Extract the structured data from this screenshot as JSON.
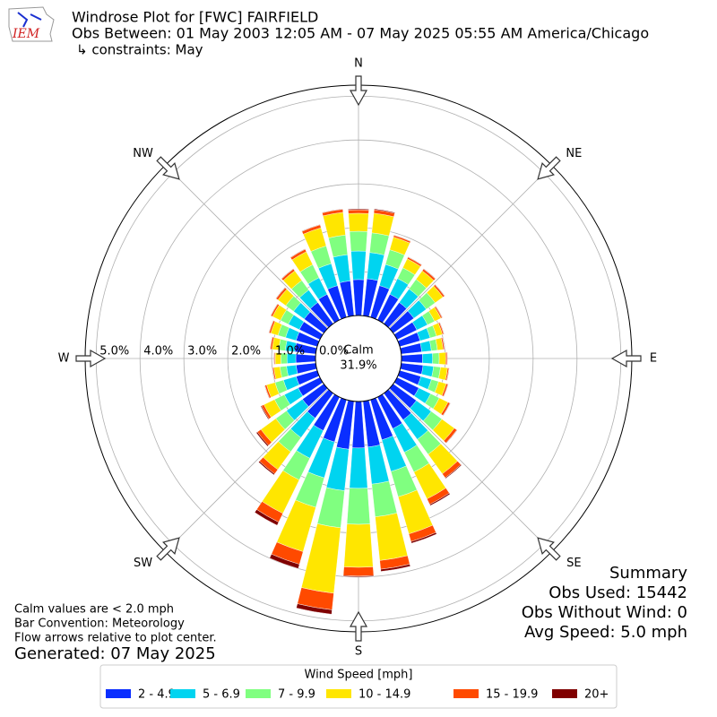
{
  "chart_data": {
    "type": "windrose",
    "title": "Windrose Plot for [FWC] FAIRFIELD",
    "subtitle": "Obs Between: 01 May 2003 12:05 AM - 07 May 2025 05:55 AM America/Chicago",
    "constraints": "↳ constraints: May",
    "logo_text": "IEM",
    "theta": [
      0,
      10,
      20,
      30,
      40,
      50,
      60,
      70,
      80,
      90,
      100,
      110,
      120,
      130,
      140,
      150,
      160,
      170,
      180,
      190,
      200,
      210,
      220,
      230,
      240,
      250,
      260,
      270,
      280,
      290,
      300,
      310,
      320,
      330,
      340,
      350
    ],
    "xticks": [
      {
        "value": 0,
        "label": "N"
      },
      {
        "value": 45,
        "label": "NE"
      },
      {
        "value": 90,
        "label": "E"
      },
      {
        "value": 135,
        "label": "SE"
      },
      {
        "value": 180,
        "label": "S"
      },
      {
        "value": 225,
        "label": "SW"
      },
      {
        "value": 270,
        "label": "W"
      },
      {
        "value": 315,
        "label": "NW"
      }
    ],
    "rlim": [
      0,
      5.25
    ],
    "rticks": [
      {
        "value": 0,
        "label": "0.0%"
      },
      {
        "value": 1,
        "label": "1.0%"
      },
      {
        "value": 2,
        "label": "2.0%"
      },
      {
        "value": 3,
        "label": "3.0%"
      },
      {
        "value": 4,
        "label": "4.0%"
      },
      {
        "value": 5,
        "label": "5.0%"
      }
    ],
    "grid": true,
    "calm_label": "Calm",
    "calm_value": 31.9,
    "calm_value_label": "31.9%",
    "legend_title": "Wind Speed [mph]",
    "series": [
      {
        "name": "2 - 4.9",
        "color": "#0a2eff",
        "values": [
          0.82,
          0.85,
          0.75,
          0.65,
          0.6,
          0.58,
          0.5,
          0.48,
          0.47,
          0.48,
          0.5,
          0.5,
          0.55,
          0.65,
          0.75,
          0.8,
          0.95,
          1.05,
          1.06,
          1.1,
          1.0,
          0.85,
          0.7,
          0.6,
          0.55,
          0.5,
          0.45,
          0.45,
          0.48,
          0.5,
          0.52,
          0.55,
          0.6,
          0.65,
          0.75,
          0.8
        ]
      },
      {
        "name": "5 - 6.9",
        "color": "#00d4f0",
        "values": [
          0.65,
          0.6,
          0.5,
          0.4,
          0.38,
          0.35,
          0.27,
          0.24,
          0.22,
          0.23,
          0.24,
          0.25,
          0.3,
          0.42,
          0.55,
          0.6,
          0.75,
          0.85,
          0.92,
          0.95,
          0.85,
          0.7,
          0.55,
          0.45,
          0.35,
          0.3,
          0.22,
          0.2,
          0.22,
          0.25,
          0.28,
          0.3,
          0.35,
          0.42,
          0.52,
          0.6
        ]
      },
      {
        "name": "7 - 9.9",
        "color": "#80ff80",
        "values": [
          0.45,
          0.45,
          0.35,
          0.27,
          0.27,
          0.25,
          0.18,
          0.15,
          0.14,
          0.15,
          0.16,
          0.17,
          0.22,
          0.3,
          0.42,
          0.5,
          0.6,
          0.75,
          0.82,
          0.85,
          0.7,
          0.55,
          0.4,
          0.3,
          0.25,
          0.2,
          0.15,
          0.14,
          0.15,
          0.18,
          0.2,
          0.22,
          0.27,
          0.33,
          0.42,
          0.45
        ]
      },
      {
        "name": "10 - 14.9",
        "color": "#ffe600",
        "values": [
          0.41,
          0.45,
          0.3,
          0.23,
          0.24,
          0.22,
          0.16,
          0.14,
          0.13,
          0.15,
          0.16,
          0.18,
          0.22,
          0.35,
          0.55,
          0.68,
          0.88,
          1.0,
          0.98,
          1.5,
          1.05,
          0.85,
          0.5,
          0.42,
          0.27,
          0.2,
          0.14,
          0.13,
          0.15,
          0.17,
          0.2,
          0.22,
          0.27,
          0.33,
          0.43,
          0.52
        ]
      },
      {
        "name": "15 - 19.9",
        "color": "#ff4a00",
        "values": [
          0.08,
          0.08,
          0.04,
          0.04,
          0.05,
          0.04,
          0.03,
          0.03,
          0.03,
          0.03,
          0.03,
          0.04,
          0.05,
          0.07,
          0.11,
          0.14,
          0.18,
          0.2,
          0.2,
          0.38,
          0.3,
          0.22,
          0.12,
          0.1,
          0.06,
          0.04,
          0.03,
          0.02,
          0.04,
          0.04,
          0.04,
          0.05,
          0.05,
          0.06,
          0.07,
          0.07
        ]
      },
      {
        "name": "20+",
        "color": "#800000",
        "values": [
          0.02,
          0.02,
          0.01,
          0.01,
          0.01,
          0.01,
          0.01,
          0.01,
          0.01,
          0.01,
          0.01,
          0.01,
          0.01,
          0.01,
          0.02,
          0.03,
          0.04,
          0.05,
          0.02,
          0.1,
          0.1,
          0.08,
          0.03,
          0.03,
          0.02,
          0.01,
          0.01,
          0.01,
          0.01,
          0.01,
          0.01,
          0.01,
          0.01,
          0.01,
          0.01,
          0.01
        ]
      }
    ],
    "summary": [
      "Summary",
      "Obs Used: 15442",
      "Obs Without Wind: 0",
      "Avg Speed: 5.0 mph"
    ],
    "notes": [
      "Calm values are < 2.0 mph",
      "Bar Convention: Meteorology",
      "Flow arrows relative to plot center."
    ],
    "generated": "Generated: 07 May 2025"
  }
}
